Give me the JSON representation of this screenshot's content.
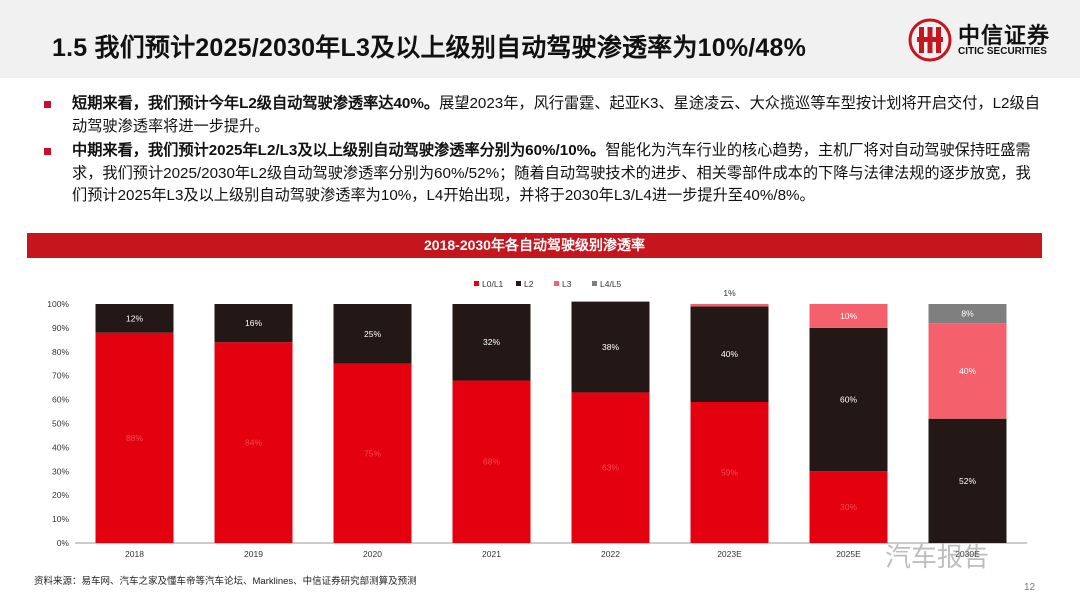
{
  "header": {
    "title": "1.5 我们预计2025/2030年L3及以上级别自动驾驶渗透率为10%/48%",
    "logo_name": "中信证券",
    "logo_sub": "CITIC SECURITIES",
    "brand_color": "#c4161c"
  },
  "bullets": [
    {
      "bold": "短期来看，我们预计今年L2级自动驾驶渗透率达40%。",
      "text": "展望2023年，风行雷霆、起亚K3、星途凌云、大众揽巡等车型按计划将开启交付，L2级自动驾驶渗透率将进一步提升。"
    },
    {
      "bold": "中期来看，我们预计2025年L2/L3及以上级别自动驾驶渗透率分别为60%/10%。",
      "text": "智能化为汽车行业的核心趋势，主机厂将对自动驾驶保持旺盛需求，我们预计2025/2030年L2级自动驾驶渗透率分别为60%/52%；随着自动驾驶技术的进步、相关零部件成本的下降与法律法规的逐步放宽，我们预计2025年L3及以上级别自动驾驶渗透率为10%，L4开始出现，并将于2030年L3/L4进一步提升至40%/8%。"
    }
  ],
  "banner": "2018-2030年各自动驾驶级别渗透率",
  "chart_data": {
    "type": "bar",
    "stacked": true,
    "categories": [
      "2018",
      "2019",
      "2020",
      "2021",
      "2022",
      "2023E",
      "2025E",
      "2030E"
    ],
    "series": [
      {
        "name": "L0/L1",
        "color": "#e3000f",
        "values": [
          88,
          84,
          75,
          68,
          63,
          59,
          30,
          0
        ],
        "labels": [
          "88%",
          "84%",
          "75%",
          "68%",
          "63%",
          "59%",
          "30%",
          ""
        ]
      },
      {
        "name": "L2",
        "color": "#231815",
        "values": [
          12,
          16,
          25,
          32,
          38,
          40,
          60,
          52
        ],
        "labels": [
          "12%",
          "16%",
          "25%",
          "32%",
          "38%",
          "40%",
          "60%",
          "52%"
        ]
      },
      {
        "name": "L3",
        "color": "#f4606c",
        "values": [
          0,
          0,
          0,
          0,
          0,
          1,
          10,
          40
        ],
        "labels": [
          "",
          "",
          "",
          "",
          "",
          "1%",
          "10%",
          "40%"
        ]
      },
      {
        "name": "L4/L5",
        "color": "#7f7f7f",
        "values": [
          0,
          0,
          0,
          0,
          0,
          0,
          0,
          8
        ],
        "labels": [
          "",
          "",
          "",
          "",
          "",
          "",
          "",
          "8%"
        ]
      }
    ],
    "ylim": [
      0,
      100
    ],
    "yticks": [
      "0%",
      "10%",
      "20%",
      "30%",
      "40%",
      "50%",
      "60%",
      "70%",
      "80%",
      "90%",
      "100%"
    ],
    "legend": "top-center"
  },
  "source": "资料来源：易车网、汽车之家及懂车帝等汽车论坛、Marklines、中信证券研究部测算及预测",
  "page_number": "12",
  "watermark": "汽车报告"
}
